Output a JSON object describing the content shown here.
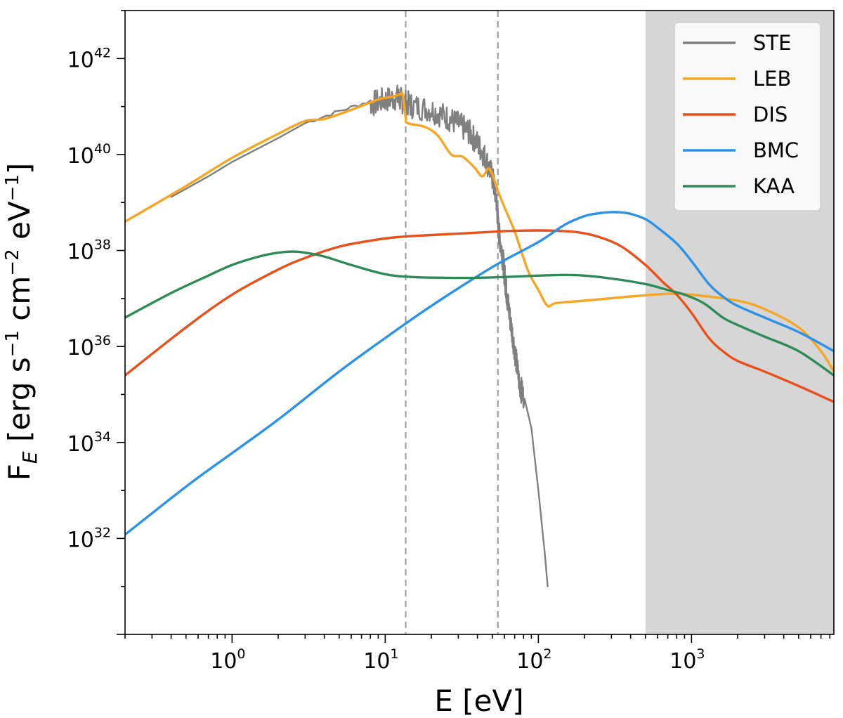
{
  "chart_data": {
    "type": "line",
    "xscale": "log",
    "yscale": "log",
    "xlabel": {
      "main": "E [eV]"
    },
    "ylabel": {
      "prefix": "F",
      "subscript": "E",
      "unit_open": " [erg s",
      "exp1": "−1",
      "unit_mid": " cm",
      "exp2": "−2",
      "unit_mid2": " eV",
      "exp3": "−1",
      "unit_close": "]"
    },
    "xlim": [
      0.2,
      8500
    ],
    "ylim": [
      1e+30,
      1e+43
    ],
    "xticks": [
      {
        "value": 1,
        "base": "10",
        "exp": "0"
      },
      {
        "value": 10,
        "base": "10",
        "exp": "1"
      },
      {
        "value": 100,
        "base": "10",
        "exp": "2"
      },
      {
        "value": 1000,
        "base": "10",
        "exp": "3"
      }
    ],
    "yticks": [
      {
        "value": 1e+32,
        "base": "10",
        "exp": "32"
      },
      {
        "value": 1e+34,
        "base": "10",
        "exp": "34"
      },
      {
        "value": 1e+36,
        "base": "10",
        "exp": "36"
      },
      {
        "value": 1e+38,
        "base": "10",
        "exp": "38"
      },
      {
        "value": 1e+40,
        "base": "10",
        "exp": "40"
      },
      {
        "value": 1e+42,
        "base": "10",
        "exp": "42"
      }
    ],
    "shaded_region": {
      "x_from": 500,
      "x_to": 8500,
      "color": "#d6d6d6"
    },
    "vertical_lines": [
      {
        "x": 13.6,
        "color": "#a0a0a0",
        "style": "dashed"
      },
      {
        "x": 54.4,
        "color": "#a0a0a0",
        "style": "dashed"
      }
    ],
    "legend_position": "top-right",
    "series": [
      {
        "name": "STE",
        "color": "#808080",
        "noisy": true,
        "x": [
          0.4,
          0.7,
          1.0,
          2.0,
          3.0,
          5.0,
          8.0,
          10.0,
          12.0,
          13.0,
          15.0,
          20.0,
          25.0,
          30.0,
          35.0,
          40.0,
          45.0,
          50.0,
          53.0,
          55.0,
          58.0,
          60.0,
          62.0,
          65.0,
          70.0,
          75.0,
          80.0,
          90.0,
          100.0,
          110.0,
          115.0
        ],
        "y": [
          1.3e+39,
          3.5e+39,
          7e+39,
          2.2e+40,
          4.5e+40,
          8e+40,
          1.3e+41,
          1.6e+41,
          1.8e+41,
          1.5e+41,
          1.2e+41,
          1e+41,
          7e+40,
          5e+40,
          3.5e+40,
          2e+40,
          1e+40,
          4e+39,
          1.5e+39,
          3e+38,
          1e+38,
          4e+37,
          1.5e+37,
          5e+36,
          1e+36,
          2e+35,
          1e+35,
          2e+34,
          1e+33,
          5e+31,
          1e+31
        ]
      },
      {
        "name": "LEB",
        "color": "#f5a623",
        "noisy": false,
        "x": [
          0.2,
          0.5,
          1.0,
          2.0,
          3.0,
          4.0,
          6.0,
          9.0,
          11.0,
          12.5,
          13.0,
          13.6,
          14.0,
          18.0,
          22.0,
          27.0,
          32.0,
          38.0,
          43.0,
          48.0,
          55.0,
          60.0,
          70.0,
          85.0,
          100.0,
          115.0,
          130.0,
          200.0,
          400.0,
          700.0,
          1000.0,
          2000.0,
          3000.0,
          5000.0,
          7000.0,
          8500.0
        ],
        "y": [
          4e+38,
          2.2e+39,
          8.5e+39,
          2.7e+40,
          5e+40,
          5.5e+40,
          8.5e+40,
          1.4e+41,
          1.6e+41,
          1.8e+41,
          1.8e+41,
          6e+40,
          4.5e+40,
          3.8e+40,
          2.5e+40,
          1e+40,
          9e+39,
          5.5e+39,
          3.5e+39,
          5e+39,
          1.6e+39,
          8e+38,
          2.5e+38,
          4e+37,
          1.5e+37,
          7e+36,
          8e+36,
          9e+36,
          1.1e+37,
          1.25e+37,
          1.2e+37,
          9e+36,
          6e+36,
          2.5e+36,
          8e+35,
          3e+35
        ]
      },
      {
        "name": "DIS",
        "color": "#e8511b",
        "noisy": false,
        "x": [
          0.2,
          0.5,
          1.0,
          2.0,
          3.0,
          5.0,
          8.0,
          12.0,
          20.0,
          35.0,
          55.0,
          80.0,
          120.0,
          180.0,
          250.0,
          350.0,
          500.0,
          650.0,
          800.0,
          1000.0,
          1300.0,
          1600.0,
          2000.0,
          3000.0,
          5000.0,
          8500.0
        ],
        "y": [
          2.5e+35,
          2.5e+36,
          1.2e+37,
          4e+37,
          7e+37,
          1.2e+38,
          1.6e+38,
          1.9e+38,
          2.1e+38,
          2.3e+38,
          2.5e+38,
          2.6e+38,
          2.6e+38,
          2.4e+38,
          1.9e+38,
          1.2e+38,
          5e+37,
          2.2e+37,
          1.2e+37,
          5e+36,
          1.5e+36,
          8e+35,
          5e+35,
          3e+35,
          1.5e+35,
          7e+34
        ]
      },
      {
        "name": "BMC",
        "color": "#2a93e8",
        "noisy": false,
        "x": [
          0.2,
          0.5,
          1.0,
          2.0,
          5.0,
          10.0,
          20.0,
          50.0,
          100.0,
          150.0,
          200.0,
          250.0,
          300.0,
          350.0,
          400.0,
          500.0,
          600.0,
          800.0,
          1000.0,
          1300.0,
          1600.0,
          2000.0,
          3000.0,
          5000.0,
          8500.0
        ],
        "y": [
          1.2e+32,
          1.2e+33,
          6e+33,
          3e+34,
          3e+35,
          1.5e+36,
          7e+36,
          4.5e+37,
          1.5e+38,
          3.5e+38,
          5.2e+38,
          6e+38,
          6.3e+38,
          6.2e+38,
          5.8e+38,
          4.5e+38,
          3e+38,
          1.4e+38,
          6e+37,
          2e+37,
          1.1e+37,
          7e+36,
          4e+36,
          2e+36,
          8e+35
        ]
      },
      {
        "name": "KAA",
        "color": "#2e8b57",
        "noisy": false,
        "x": [
          0.2,
          0.4,
          0.7,
          1.0,
          1.5,
          2.0,
          2.5,
          3.0,
          4.0,
          6.0,
          10.0,
          15.0,
          25.0,
          40.0,
          60.0,
          100.0,
          150.0,
          200.0,
          300.0,
          500.0,
          700.0,
          900.0,
          1200.0,
          1600.0,
          2000.0,
          3000.0,
          5000.0,
          8500.0
        ],
        "y": [
          4e+36,
          1.3e+37,
          3e+37,
          5e+37,
          7.5e+37,
          9e+37,
          9.5e+37,
          9e+37,
          7.5e+37,
          5e+37,
          3.2e+37,
          2.8e+37,
          2.7e+37,
          2.7e+37,
          2.8e+37,
          3e+37,
          3.1e+37,
          3e+37,
          2.6e+37,
          2e+37,
          1.5e+37,
          1.2e+37,
          8e+36,
          4e+36,
          2.8e+36,
          1.6e+36,
          8e+35,
          2.5e+35
        ]
      }
    ]
  }
}
